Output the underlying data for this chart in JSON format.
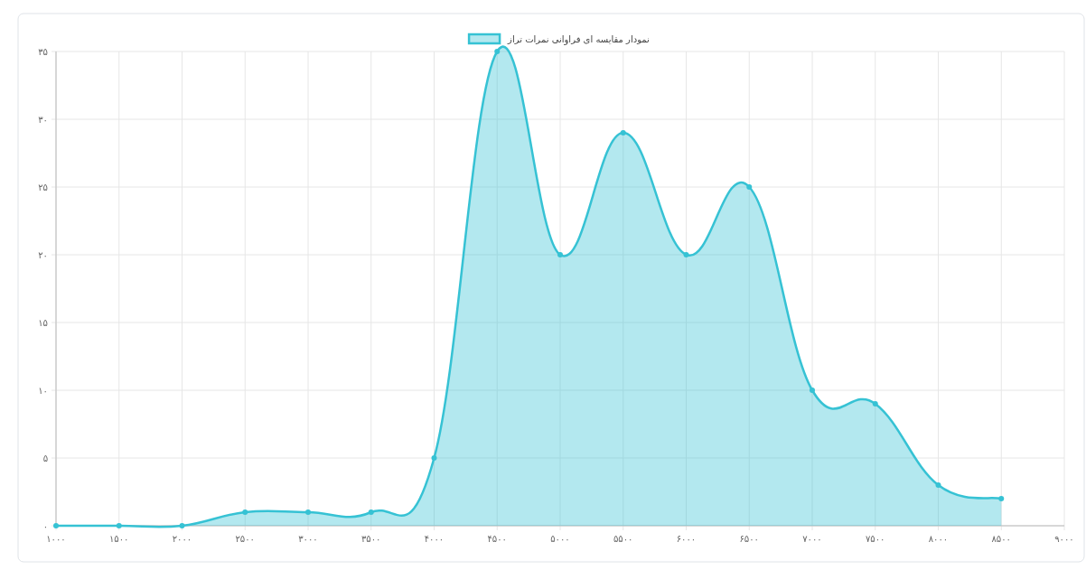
{
  "chart_data": {
    "type": "area",
    "x": [
      1000,
      1500,
      2000,
      2500,
      3000,
      3500,
      4000,
      4500,
      5000,
      5500,
      6000,
      6500,
      7000,
      7500,
      8000,
      8500
    ],
    "series": [
      {
        "name": "نمودار مقایسه ای فراوانی نمرات تراز",
        "color": "#36c2d4",
        "values": [
          0,
          0,
          0,
          1,
          1,
          1,
          5,
          35,
          20,
          29,
          20,
          25,
          10,
          9,
          3,
          2
        ]
      }
    ],
    "xlim": [
      1000,
      9000
    ],
    "xticks": [
      {
        "value": 1000,
        "label": "۱۰۰۰"
      },
      {
        "value": 1500,
        "label": "۱۵۰۰"
      },
      {
        "value": 2000,
        "label": "۲۰۰۰"
      },
      {
        "value": 2500,
        "label": "۲۵۰۰"
      },
      {
        "value": 3000,
        "label": "۳۰۰۰"
      },
      {
        "value": 3500,
        "label": "۳۵۰۰"
      },
      {
        "value": 4000,
        "label": "۴۰۰۰"
      },
      {
        "value": 4500,
        "label": "۴۵۰۰"
      },
      {
        "value": 5000,
        "label": "۵۰۰۰"
      },
      {
        "value": 5500,
        "label": "۵۵۰۰"
      },
      {
        "value": 6000,
        "label": "۶۰۰۰"
      },
      {
        "value": 6500,
        "label": "۶۵۰۰"
      },
      {
        "value": 7000,
        "label": "۷۰۰۰"
      },
      {
        "value": 7500,
        "label": "۷۵۰۰"
      },
      {
        "value": 8000,
        "label": "۸۰۰۰"
      },
      {
        "value": 8500,
        "label": "۸۵۰۰"
      },
      {
        "value": 9000,
        "label": "۹۰۰۰"
      }
    ],
    "ylim": [
      0,
      35
    ],
    "yticks": [
      {
        "value": 0,
        "label": "۰"
      },
      {
        "value": 5,
        "label": "۵"
      },
      {
        "value": 10,
        "label": "۱۰"
      },
      {
        "value": 15,
        "label": "۱۵"
      },
      {
        "value": 20,
        "label": "۲۰"
      },
      {
        "value": 25,
        "label": "۲۵"
      },
      {
        "value": 30,
        "label": "۳۰"
      },
      {
        "value": 35,
        "label": "۳۵"
      }
    ],
    "grid": true,
    "legend": "top",
    "marker": "circle",
    "line_style": "solid"
  }
}
